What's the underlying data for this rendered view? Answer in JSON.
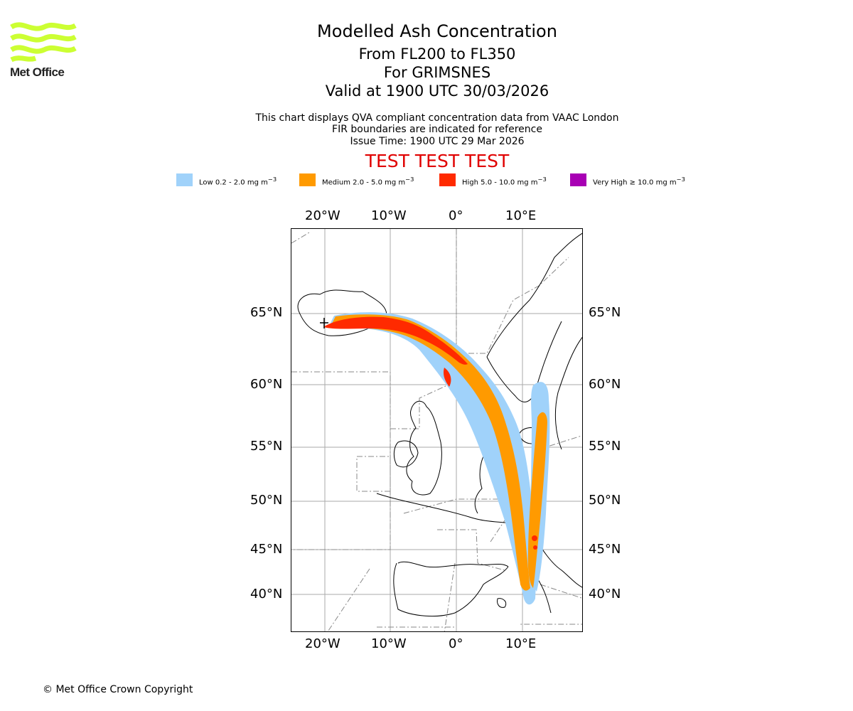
{
  "logo": {
    "text": "Met Office",
    "brand_color": "#ccff33"
  },
  "header": {
    "title": "Modelled Ash Concentration",
    "flight_levels": "From FL200 to FL350",
    "volcano": "For GRIMSNES",
    "valid_time": "Valid at 1900 UTC 30/03/2026"
  },
  "info": {
    "line1": "This chart displays QVA compliant concentration data from VAAC London",
    "line2": "FIR boundaries are indicated for reference",
    "line3": "Issue Time: 1900 UTC 29 Mar 2026"
  },
  "test_banner": "TEST TEST TEST",
  "legend": [
    {
      "label": "Low 0.2 - 2.0 mg m",
      "exp": "−3",
      "color": "#a0d2fa"
    },
    {
      "label": "Medium 2.0 - 5.0 mg m",
      "exp": "−3",
      "color": "#ff9a00"
    },
    {
      "label": "High 5.0 - 10.0 mg m",
      "exp": "−3",
      "color": "#ff2a00"
    },
    {
      "label": "Very High  ≥  10.0 mg m",
      "exp": "−3",
      "color": "#a800b4"
    }
  ],
  "axes": {
    "lon_labels": [
      "20°W",
      "10°W",
      "0°",
      "10°E"
    ],
    "lat_labels": [
      "65°N",
      "60°N",
      "55°N",
      "50°N",
      "45°N",
      "40°N"
    ]
  },
  "footer": {
    "copyright": "© Met Office Crown Copyright"
  }
}
